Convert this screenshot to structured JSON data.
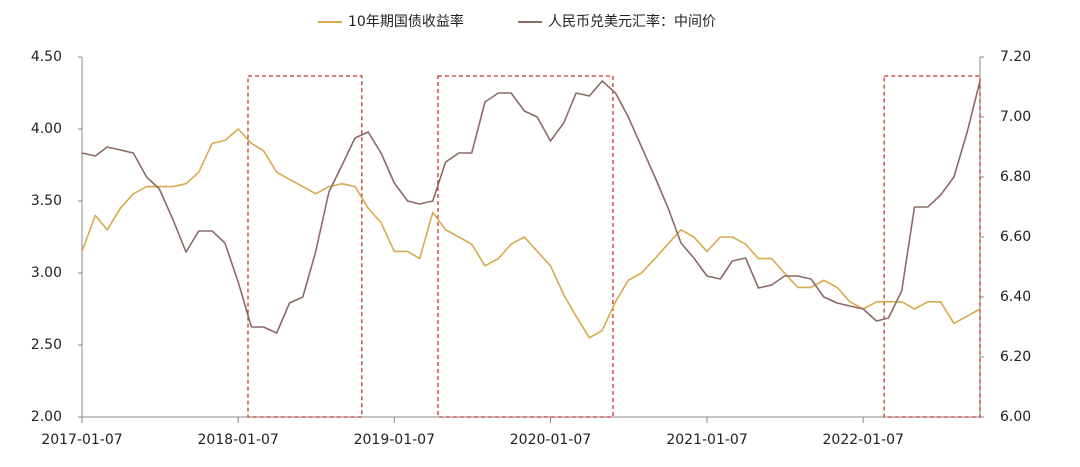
{
  "chart_data": {
    "type": "line",
    "x": [
      "2017-01-07",
      "2017-02-07",
      "2017-03-07",
      "2017-04-07",
      "2017-05-07",
      "2017-06-07",
      "2017-07-07",
      "2017-08-07",
      "2017-09-07",
      "2017-10-07",
      "2017-11-07",
      "2017-12-07",
      "2018-01-07",
      "2018-02-07",
      "2018-03-07",
      "2018-04-07",
      "2018-05-07",
      "2018-06-07",
      "2018-07-07",
      "2018-08-07",
      "2018-09-07",
      "2018-10-07",
      "2018-11-07",
      "2018-12-07",
      "2019-01-07",
      "2019-02-07",
      "2019-03-07",
      "2019-04-07",
      "2019-05-07",
      "2019-06-07",
      "2019-07-07",
      "2019-08-07",
      "2019-09-07",
      "2019-10-07",
      "2019-11-07",
      "2019-12-07",
      "2020-01-07",
      "2020-02-07",
      "2020-03-07",
      "2020-04-07",
      "2020-05-07",
      "2020-06-07",
      "2020-07-07",
      "2020-08-07",
      "2020-09-07",
      "2020-10-07",
      "2020-11-07",
      "2020-12-07",
      "2021-01-07",
      "2021-02-07",
      "2021-03-07",
      "2021-04-07",
      "2021-05-07",
      "2021-06-07",
      "2021-07-07",
      "2021-08-07",
      "2021-09-07",
      "2021-10-07",
      "2021-11-07",
      "2021-12-07",
      "2022-01-07",
      "2022-02-07",
      "2022-03-07",
      "2022-04-07",
      "2022-05-07",
      "2022-06-07",
      "2022-07-07",
      "2022-08-07",
      "2022-09-07",
      "2022-10-07"
    ],
    "series": [
      {
        "name": "10年期国债收益率",
        "color": "#d8aa4e",
        "axis": "y",
        "values": [
          3.15,
          3.4,
          3.3,
          3.45,
          3.55,
          3.6,
          3.6,
          3.6,
          3.62,
          3.7,
          3.9,
          3.92,
          4.0,
          3.9,
          3.85,
          3.7,
          3.65,
          3.6,
          3.55,
          3.6,
          3.62,
          3.6,
          3.45,
          3.35,
          3.15,
          3.15,
          3.1,
          3.42,
          3.3,
          3.25,
          3.2,
          3.05,
          3.1,
          3.2,
          3.25,
          3.15,
          3.05,
          2.85,
          2.7,
          2.55,
          2.6,
          2.8,
          2.95,
          3.0,
          3.1,
          3.2,
          3.3,
          3.25,
          3.15,
          3.25,
          3.25,
          3.2,
          3.1,
          3.1,
          3.0,
          2.9,
          2.9,
          2.95,
          2.9,
          2.8,
          2.75,
          2.8,
          2.8,
          2.8,
          2.75,
          2.8,
          2.8,
          2.65,
          2.7,
          2.75
        ]
      },
      {
        "name": "人民币兑美元汇率：中间价",
        "color": "#8c6b66",
        "axis": "y2",
        "values": [
          6.88,
          6.87,
          6.9,
          6.89,
          6.88,
          6.8,
          6.76,
          6.66,
          6.55,
          6.62,
          6.62,
          6.58,
          6.45,
          6.3,
          6.3,
          6.28,
          6.38,
          6.4,
          6.55,
          6.75,
          6.84,
          6.93,
          6.95,
          6.88,
          6.78,
          6.72,
          6.71,
          6.72,
          6.85,
          6.88,
          6.88,
          7.05,
          7.08,
          7.08,
          7.02,
          7.0,
          6.92,
          6.98,
          7.08,
          7.07,
          7.12,
          7.08,
          7.0,
          6.9,
          6.8,
          6.7,
          6.58,
          6.53,
          6.47,
          6.46,
          6.52,
          6.53,
          6.43,
          6.44,
          6.47,
          6.47,
          6.46,
          6.4,
          6.38,
          6.37,
          6.36,
          6.32,
          6.33,
          6.42,
          6.7,
          6.7,
          6.74,
          6.8,
          6.95,
          7.12
        ]
      }
    ],
    "xlim": [
      "2017-01-07",
      "2022-10-07"
    ],
    "xticks": [
      "2017-01-07",
      "2018-01-07",
      "2019-01-07",
      "2020-01-07",
      "2021-01-07",
      "2022-01-07"
    ],
    "ylim": [
      2,
      4.5
    ],
    "yticks": [
      {
        "value": 2,
        "label": "2.00"
      },
      {
        "value": 2.5,
        "label": "2.50"
      },
      {
        "value": 3,
        "label": "3.00"
      },
      {
        "value": 3.5,
        "label": "3.50"
      },
      {
        "value": 4,
        "label": "4.00"
      },
      {
        "value": 4.5,
        "label": "4.50"
      }
    ],
    "y2lim": [
      6,
      7.2
    ],
    "y2ticks": [
      {
        "value": 6,
        "label": "6.00"
      },
      {
        "value": 6.2,
        "label": "6.20"
      },
      {
        "value": 6.4,
        "label": "6.40"
      },
      {
        "value": 6.6,
        "label": "6.60"
      },
      {
        "value": 6.8,
        "label": "6.80"
      },
      {
        "value": 7,
        "label": "7.00"
      },
      {
        "value": 7.2,
        "label": "7.20"
      }
    ],
    "highlights": [
      [
        "2018-01-30",
        "2018-10-23"
      ],
      [
        "2019-04-19",
        "2020-06-01"
      ],
      [
        "2022-02-25",
        "2022-10-07"
      ]
    ],
    "highlight_color": "#c0392b",
    "grid": false,
    "legend": "top"
  }
}
